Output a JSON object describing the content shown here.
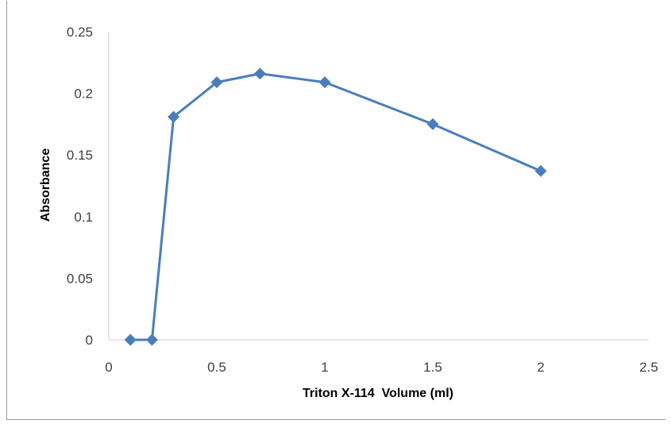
{
  "chart_data": {
    "type": "line",
    "title": "",
    "xlabel": "Triton X-114  Volume (ml)",
    "ylabel": "Absorbance",
    "xlim": [
      0,
      2.5
    ],
    "ylim": [
      0,
      0.25
    ],
    "x_ticks": [
      "0",
      "0.5",
      "1",
      "1.5",
      "2",
      "2.5"
    ],
    "y_ticks": [
      "0",
      "0.05",
      "0.1",
      "0.15",
      "0.2",
      "0.25"
    ],
    "x_tick_values": [
      0,
      0.5,
      1,
      1.5,
      2,
      2.5
    ],
    "y_tick_values": [
      0,
      0.05,
      0.1,
      0.15,
      0.2,
      0.25
    ],
    "grid": false,
    "legend": "none",
    "series": [
      {
        "x": [
          0.1,
          0.2,
          0.3,
          0.5,
          0.7,
          1.0,
          1.5,
          2.0
        ],
        "y": [
          0,
          0,
          0.181,
          0.209,
          0.216,
          0.209,
          0.175,
          0.137
        ],
        "color": "#4a7ebb",
        "marker": "diamond"
      }
    ]
  }
}
